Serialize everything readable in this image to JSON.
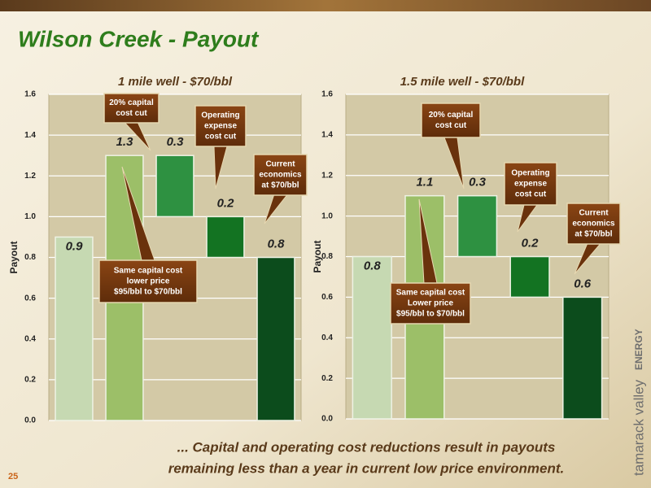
{
  "header": {
    "title": "Wilson Creek - Payout"
  },
  "chart_data": [
    {
      "type": "waterfall",
      "title": "1 mile well - $70/bbl",
      "y_label": "Payout",
      "values": [
        0.9,
        1.3,
        0.3,
        0.2,
        0.8
      ],
      "measures": [
        "total",
        "total",
        "decrease",
        "decrease",
        "total"
      ],
      "colors": [
        "#c6d9b2",
        "#9cbf68",
        "#2e9141",
        "#137322",
        "#0c4c1c"
      ],
      "ylim": [
        0,
        1.6
      ],
      "yticks": [
        {
          "value": 0,
          "label": "0.0"
        },
        0.2,
        0.4,
        0.6,
        0.8,
        {
          "value": 1,
          "label": "1.0"
        },
        1.2,
        1.4,
        1.6
      ],
      "grid": true,
      "annotations": [
        [
          "20% capital",
          "cost cut"
        ],
        [
          "Operating",
          "expense",
          "cost cut"
        ],
        [
          "Current",
          "economics",
          "at $70/bbl"
        ],
        [
          "Same capital cost",
          "lower price",
          "$95/bbl to $70/bbl"
        ]
      ]
    },
    {
      "type": "waterfall",
      "title": "1.5 mile well - $70/bbl",
      "y_label": "Payout",
      "values": [
        0.8,
        1.1,
        0.3,
        0.2,
        0.6
      ],
      "measures": [
        "total",
        "total",
        "decrease",
        "decrease",
        "total"
      ],
      "colors": [
        "#c6d9b2",
        "#9cbf68",
        "#2e9141",
        "#137322",
        "#0c4c1c"
      ],
      "ylim": [
        0,
        1.6
      ],
      "yticks": [
        {
          "value": 0,
          "label": "0.0"
        },
        0.2,
        0.4,
        0.6,
        0.8,
        {
          "value": 1,
          "label": "1.0"
        },
        1.2,
        1.4,
        1.6
      ],
      "grid": true,
      "annotations": [
        [
          "20% capital",
          "cost cut"
        ],
        [
          "Operating",
          "expense",
          "cost cut"
        ],
        [
          "Current",
          "economics",
          "at $70/bbl"
        ],
        [
          "Same capital cost",
          "Lower price",
          "$95/bbl to $70/bbl"
        ]
      ]
    }
  ],
  "footer": {
    "lines": [
      "... Capital and operating cost reductions result in payouts",
      "remaining less than a year in current low price environment."
    ],
    "page_number": "25"
  },
  "logo": {
    "name": "tamarack valley",
    "suffix": "ENERGY"
  }
}
